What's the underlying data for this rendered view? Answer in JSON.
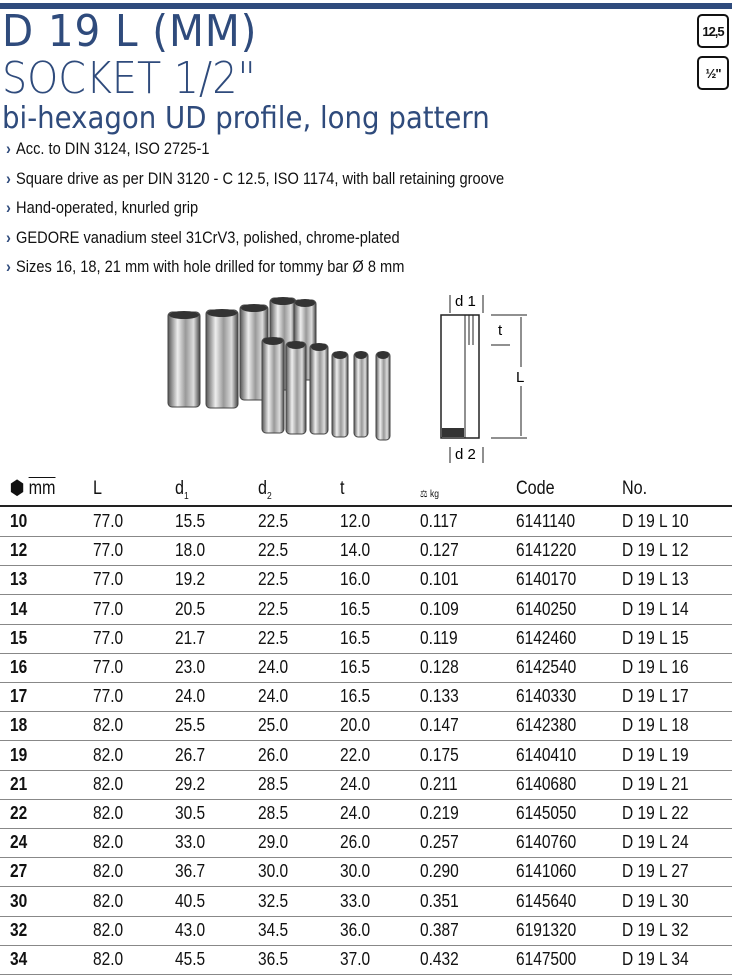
{
  "title": {
    "line1": "D 19 L (MM)",
    "line2": "SOCKET 1/2\"",
    "line3": "bi-hexagon UD profile, long pattern"
  },
  "badges": [
    "12,5",
    "½\""
  ],
  "features": [
    "Acc. to DIN 3124, ISO 2725-1",
    "Square drive as per DIN 3120 - C 12.5, ISO 1174, with ball retaining groove",
    "Hand-operated, knurled grip",
    "GEDORE vanadium steel 31CrV3, polished, chrome-plated",
    "Sizes 16, 18, 21 mm with hole drilled for tommy bar Ø 8 mm"
  ],
  "diagram": {
    "d1": "d 1",
    "d2": "d 2",
    "t": "t",
    "L": "L"
  },
  "table": {
    "headers": {
      "size": "mm",
      "L": "L",
      "d1": "d",
      "d1_sub": "1",
      "d2": "d",
      "d2_sub": "2",
      "t": "t",
      "weight": "kg",
      "code": "Code",
      "no": "No."
    },
    "rows": [
      [
        "10",
        "77.0",
        "15.5",
        "22.5",
        "12.0",
        "0.117",
        "6141140",
        "D 19 L 10"
      ],
      [
        "12",
        "77.0",
        "18.0",
        "22.5",
        "14.0",
        "0.127",
        "6141220",
        "D 19 L 12"
      ],
      [
        "13",
        "77.0",
        "19.2",
        "22.5",
        "16.0",
        "0.101",
        "6140170",
        "D 19 L 13"
      ],
      [
        "14",
        "77.0",
        "20.5",
        "22.5",
        "16.5",
        "0.109",
        "6140250",
        "D 19 L 14"
      ],
      [
        "15",
        "77.0",
        "21.7",
        "22.5",
        "16.5",
        "0.119",
        "6142460",
        "D 19 L 15"
      ],
      [
        "16",
        "77.0",
        "23.0",
        "24.0",
        "16.5",
        "0.128",
        "6142540",
        "D 19 L 16"
      ],
      [
        "17",
        "77.0",
        "24.0",
        "24.0",
        "16.5",
        "0.133",
        "6140330",
        "D 19 L 17"
      ],
      [
        "18",
        "82.0",
        "25.5",
        "25.0",
        "20.0",
        "0.147",
        "6142380",
        "D 19 L 18"
      ],
      [
        "19",
        "82.0",
        "26.7",
        "26.0",
        "22.0",
        "0.175",
        "6140410",
        "D 19 L 19"
      ],
      [
        "21",
        "82.0",
        "29.2",
        "28.5",
        "24.0",
        "0.211",
        "6140680",
        "D 19 L 21"
      ],
      [
        "22",
        "82.0",
        "30.5",
        "28.5",
        "24.0",
        "0.219",
        "6145050",
        "D 19 L 22"
      ],
      [
        "24",
        "82.0",
        "33.0",
        "29.0",
        "26.0",
        "0.257",
        "6140760",
        "D 19 L 24"
      ],
      [
        "27",
        "82.0",
        "36.7",
        "30.0",
        "30.0",
        "0.290",
        "6141060",
        "D 19 L 27"
      ],
      [
        "30",
        "82.0",
        "40.5",
        "32.5",
        "33.0",
        "0.351",
        "6145640",
        "D 19 L 30"
      ],
      [
        "32",
        "82.0",
        "43.0",
        "34.5",
        "36.0",
        "0.387",
        "6191320",
        "D 19 L 32"
      ],
      [
        "34",
        "82.0",
        "45.5",
        "36.5",
        "37.0",
        "0.432",
        "6147500",
        "D 19 L 34"
      ]
    ]
  }
}
